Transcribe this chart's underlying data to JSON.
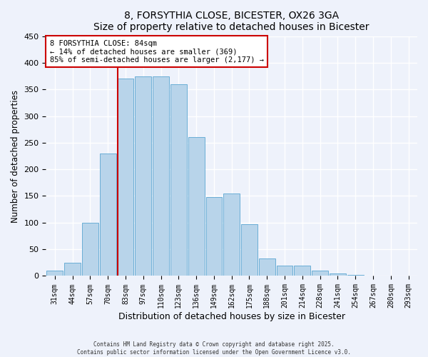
{
  "title": "8, FORSYTHIA CLOSE, BICESTER, OX26 3GA",
  "subtitle": "Size of property relative to detached houses in Bicester",
  "xlabel": "Distribution of detached houses by size in Bicester",
  "ylabel": "Number of detached properties",
  "bar_color": "#b8d4ea",
  "bar_edge_color": "#6aaed6",
  "categories": [
    "31sqm",
    "44sqm",
    "57sqm",
    "70sqm",
    "83sqm",
    "97sqm",
    "110sqm",
    "123sqm",
    "136sqm",
    "149sqm",
    "162sqm",
    "175sqm",
    "188sqm",
    "201sqm",
    "214sqm",
    "228sqm",
    "241sqm",
    "254sqm",
    "267sqm",
    "280sqm",
    "293sqm"
  ],
  "values": [
    10,
    25,
    100,
    230,
    370,
    375,
    375,
    360,
    260,
    148,
    155,
    97,
    33,
    20,
    20,
    10,
    5,
    2,
    1,
    0,
    0
  ],
  "ylim": [
    0,
    450
  ],
  "yticks": [
    0,
    50,
    100,
    150,
    200,
    250,
    300,
    350,
    400,
    450
  ],
  "annotation_line1": "8 FORSYTHIA CLOSE: 84sqm",
  "annotation_line2": "← 14% of detached houses are smaller (369)",
  "annotation_line3": "85% of semi-detached houses are larger (2,177) →",
  "annotation_box_color": "#ffffff",
  "annotation_box_edge": "#cc0000",
  "property_line_index": 4,
  "background_color": "#eef2fb",
  "grid_color": "#ffffff",
  "footer1": "Contains HM Land Registry data © Crown copyright and database right 2025.",
  "footer2": "Contains public sector information licensed under the Open Government Licence v3.0."
}
